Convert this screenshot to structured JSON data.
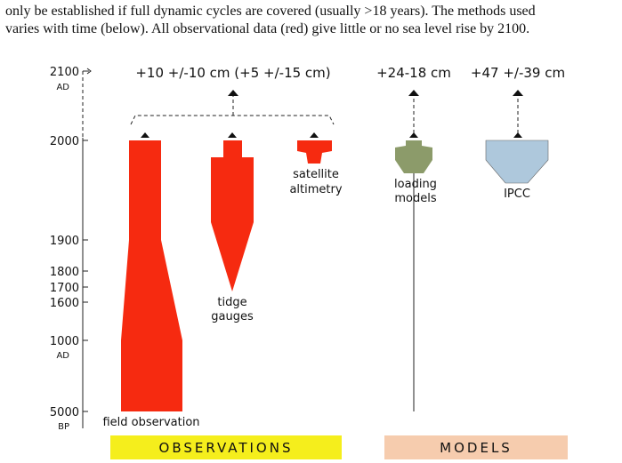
{
  "intro": {
    "lines": [
      "only be established if full dynamic cycles are covered (usually  >18 years). The methods used",
      "varies with time (below). All observational data (red) give little or no sea level rise by 2100."
    ]
  },
  "axis": {
    "labels": [
      {
        "year": "2100",
        "era": "AD"
      },
      {
        "year": "2000"
      },
      {
        "year": "1900"
      },
      {
        "year": "1800"
      },
      {
        "year": "1700"
      },
      {
        "year": "1600"
      },
      {
        "year": "1000",
        "era": "AD"
      },
      {
        "year": "5000",
        "era": "BP"
      }
    ]
  },
  "results": {
    "observations": "+10 +/-10 cm (+5 +/-15 cm)",
    "loading": "+24-18 cm",
    "ipcc": "+47 +/-39 cm"
  },
  "methods": {
    "field": "field observation",
    "tide": [
      "tidge",
      "gauges"
    ],
    "satellite": [
      "satellite",
      "altimetry"
    ],
    "loading": [
      "loading",
      "models"
    ],
    "ipcc": "IPCC"
  },
  "sections": {
    "observations": "OBSERVATIONS",
    "models": "MODELS"
  }
}
